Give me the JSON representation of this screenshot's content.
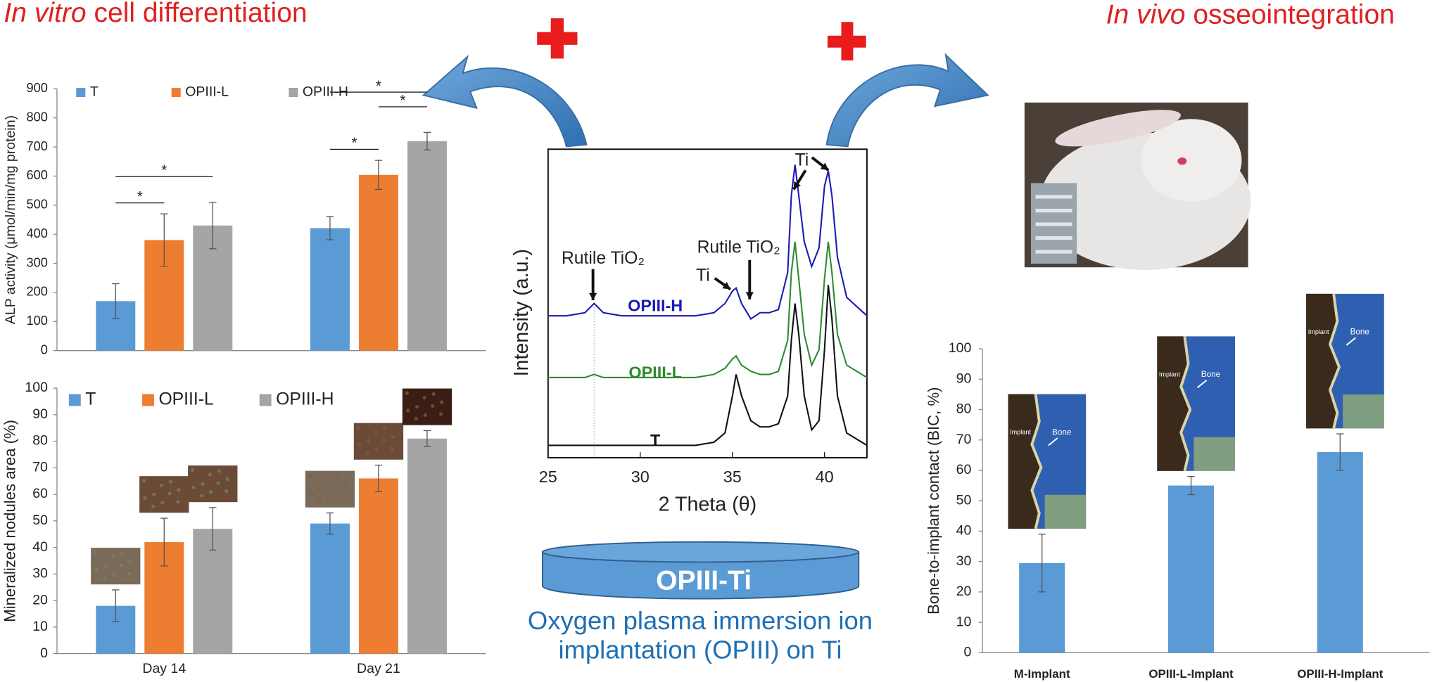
{
  "header": {
    "left": {
      "italic": "In vitro",
      "rest": " cell differentiation"
    },
    "right": {
      "italic": "In vivo",
      "rest": " osseointegration"
    }
  },
  "center": {
    "disc_label": "OPIII-Ti",
    "caption": [
      "Oxygen plasma immersion ion",
      "implantation (OPIII) on Ti"
    ]
  },
  "histology": [
    {
      "implant": "Implant",
      "bone": "Bone"
    },
    {
      "implant": "Implant",
      "bone": "Bone"
    },
    {
      "implant": "Implant",
      "bone": "Bone"
    }
  ],
  "chart_data": [
    {
      "type": "bar",
      "y_label": "ALP activity (μmol/min/mg protein)",
      "categories": [
        null,
        null
      ],
      "series": [
        {
          "name": "T",
          "color": "#5b9bd5",
          "values": [
            170,
            421
          ],
          "errors": [
            60,
            40
          ]
        },
        {
          "name": "OPIII-L",
          "color": "#ed7d31",
          "values": [
            380,
            604
          ],
          "errors": [
            90,
            50
          ]
        },
        {
          "name": "OPIII-H",
          "color": "#a5a5a5",
          "values": [
            430,
            720
          ],
          "errors": [
            80,
            30
          ]
        }
      ],
      "significance": [
        {
          "label": "*",
          "category": 0,
          "series": [
            0,
            1
          ]
        },
        {
          "label": "*",
          "category": 0,
          "series": [
            0,
            2
          ]
        },
        {
          "label": "*",
          "category": 1,
          "series": [
            0,
            1
          ]
        },
        {
          "label": "*",
          "category": 1,
          "series": [
            1,
            2
          ]
        },
        {
          "label": "*",
          "category": 1,
          "series": [
            0,
            2
          ]
        }
      ],
      "ylim": [
        0,
        900
      ],
      "yticks": [
        0,
        100,
        200,
        300,
        400,
        500,
        600,
        700,
        800,
        900
      ],
      "legend": "top"
    },
    {
      "type": "bar",
      "y_label": "Mineralized nodules area (%)",
      "categories": [
        "Day 14",
        "Day 21"
      ],
      "series": [
        {
          "name": "T",
          "color": "#5b9bd5",
          "values": [
            18,
            49
          ],
          "errors": [
            6,
            4
          ]
        },
        {
          "name": "OPIII-L",
          "color": "#ed7d31",
          "values": [
            42,
            66
          ],
          "errors": [
            9,
            5
          ]
        },
        {
          "name": "OPIII-H",
          "color": "#a5a5a5",
          "values": [
            47,
            81
          ],
          "errors": [
            8,
            3
          ]
        }
      ],
      "ylim": [
        0,
        100
      ],
      "yticks": [
        0,
        10,
        20,
        30,
        40,
        50,
        60,
        70,
        80,
        90,
        100
      ],
      "legend": "top"
    },
    {
      "type": "line",
      "x_label": "2 Theta (θ)",
      "y_label": "Intensity (a.u.)",
      "x": [
        25,
        26,
        27,
        27.5,
        28,
        29,
        30,
        31,
        32,
        33,
        34,
        34.6,
        35,
        35.2,
        35.5,
        36,
        36.5,
        37,
        37.5,
        38,
        38.2,
        38.4,
        38.6,
        38.9,
        39.3,
        39.7,
        40,
        40.2,
        40.4,
        40.7,
        41.2,
        42.3
      ],
      "series": [
        {
          "name": "OPIII-H",
          "color": "#1a1ab4",
          "values": [
            46,
            46,
            47,
            50,
            47,
            46,
            46,
            46,
            46,
            46,
            47,
            50,
            54,
            55,
            50,
            45,
            47,
            47,
            48,
            60,
            85,
            95,
            85,
            70,
            62,
            68,
            88,
            93,
            85,
            65,
            52,
            46
          ]
        },
        {
          "name": "OPIII-L",
          "color": "#2e8b2e",
          "values": [
            26,
            26,
            26,
            27,
            26,
            26,
            26,
            26,
            26,
            26,
            27,
            29,
            32,
            33,
            30,
            28,
            27,
            27,
            28,
            38,
            60,
            70,
            58,
            40,
            30,
            35,
            58,
            70,
            60,
            40,
            30,
            26
          ]
        },
        {
          "name": "T",
          "color": "#111111",
          "values": [
            4,
            4,
            4,
            4,
            4,
            4,
            4,
            4,
            4,
            4,
            5,
            8,
            20,
            27,
            20,
            12,
            10,
            10,
            11,
            20,
            38,
            50,
            40,
            20,
            9,
            12,
            35,
            56,
            45,
            20,
            8,
            4
          ]
        }
      ],
      "annotations": [
        "Rutile TiO₂",
        "Rutile TiO₂",
        "Ti",
        "Ti"
      ],
      "xlim": [
        25,
        42.3
      ],
      "xticks": [
        25,
        30,
        35,
        40
      ],
      "ylim": [
        0,
        100
      ]
    },
    {
      "type": "bar",
      "y_label": "Bone-to-implant contact (BIC, %)",
      "categories": [
        "M-Implant",
        "OPIII-L-Implant",
        "OPIII-H-Implant"
      ],
      "values": [
        29.5,
        55,
        66
      ],
      "errors": [
        9.5,
        3,
        6
      ],
      "color": "#5b9bd5",
      "ylim": [
        0,
        100
      ],
      "yticks": [
        0,
        10,
        20,
        30,
        40,
        50,
        60,
        70,
        80,
        90,
        100
      ]
    }
  ]
}
